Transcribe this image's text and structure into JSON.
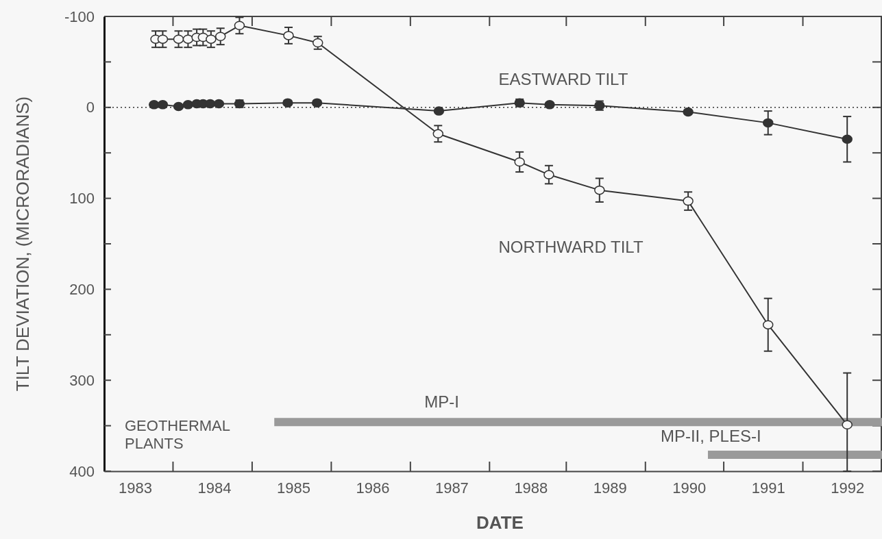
{
  "chart_data": {
    "type": "line",
    "xlabel": "DATE",
    "ylabel": "TILT DEVIATION, (MICRORADIANS)",
    "xlim": [
      1982.61,
      1992.44
    ],
    "ylim": [
      400,
      -100
    ],
    "xticks": [
      {
        "value": 1983,
        "label": "1983"
      },
      {
        "value": 1984,
        "label": "1984"
      },
      {
        "value": 1985,
        "label": "1985"
      },
      {
        "value": 1986,
        "label": "1986"
      },
      {
        "value": 1987,
        "label": "1987"
      },
      {
        "value": 1988,
        "label": "1988"
      },
      {
        "value": 1989,
        "label": "1989"
      },
      {
        "value": 1990,
        "label": "1990"
      },
      {
        "value": 1991,
        "label": "1991"
      },
      {
        "value": 1992,
        "label": "1992"
      },
      {
        "value": 1983.48,
        "label": null
      },
      {
        "value": 1984.48,
        "label": null
      },
      {
        "value": 1985.48,
        "label": null
      },
      {
        "value": 1986.48,
        "label": null
      },
      {
        "value": 1987.48,
        "label": null
      },
      {
        "value": 1988.45,
        "label": null
      },
      {
        "value": 1989.45,
        "label": null
      },
      {
        "value": 1990.44,
        "label": null
      },
      {
        "value": 1991.44,
        "label": null
      }
    ],
    "yticks": [
      -100,
      {
        "value": -50,
        "label": null
      },
      0,
      {
        "value": 50,
        "label": null
      },
      100,
      {
        "value": 150,
        "label": null
      },
      200,
      {
        "value": 250,
        "label": null
      },
      300,
      {
        "value": 350,
        "label": null
      },
      400
    ],
    "grid": false,
    "ref_lines": [
      {
        "axis": "y",
        "value": 0,
        "line_style": "dotted",
        "color": "#333333"
      }
    ],
    "annotations": [
      "GEOTHERMAL\nPLANTS"
    ],
    "series": [
      {
        "name": "EASTWARD TILT",
        "color": "#333333",
        "marker": "circle",
        "x": [
          1983.24,
          1983.35,
          1983.55,
          1983.67,
          1983.78,
          1983.86,
          1983.95,
          1984.06,
          1984.32,
          1984.93,
          1985.3,
          1986.84,
          1987.86,
          1988.24,
          1988.87,
          1989.99,
          1991.0,
          1992.0
        ],
        "values": [
          -3,
          -3,
          -1,
          -3,
          -4,
          -4,
          -4,
          -4,
          -4,
          -5,
          -5,
          4,
          -5,
          -3,
          -2,
          5,
          17,
          35
        ],
        "errors": [
          null,
          null,
          null,
          null,
          null,
          null,
          null,
          null,
          4,
          null,
          null,
          null,
          4,
          null,
          5,
          null,
          13,
          25
        ]
      },
      {
        "name": "NORTHWARD TILT",
        "color": "#333333",
        "marker": "circle-open",
        "x": [
          1983.26,
          1983.35,
          1983.55,
          1983.67,
          1983.78,
          1983.86,
          1983.96,
          1984.08,
          1984.32,
          1984.94,
          1985.31,
          1986.83,
          1987.86,
          1988.23,
          1988.87,
          1989.99,
          1991.0,
          1992.0
        ],
        "values": [
          -75,
          -75,
          -75,
          -75,
          -77,
          -77,
          -75,
          -78,
          -90,
          -79,
          -71,
          29,
          60,
          74,
          91,
          103,
          239,
          349
        ],
        "errors": [
          9,
          9,
          9,
          9,
          9,
          9,
          9,
          9,
          9,
          9,
          7,
          9,
          11,
          10,
          13,
          10,
          29,
          [
            292,
            400
          ]
        ]
      },
      {
        "name": "MP-I",
        "color": "#9a9a9a",
        "marker": "none",
        "x": [
          1984.76,
          1992.44
        ],
        "values": [
          346,
          346
        ]
      },
      {
        "name": "MP-II,  PLES-I",
        "color": "#9a9a9a",
        "marker": "none",
        "x": [
          1990.24,
          1992.44
        ],
        "values": [
          382,
          382
        ]
      }
    ]
  }
}
